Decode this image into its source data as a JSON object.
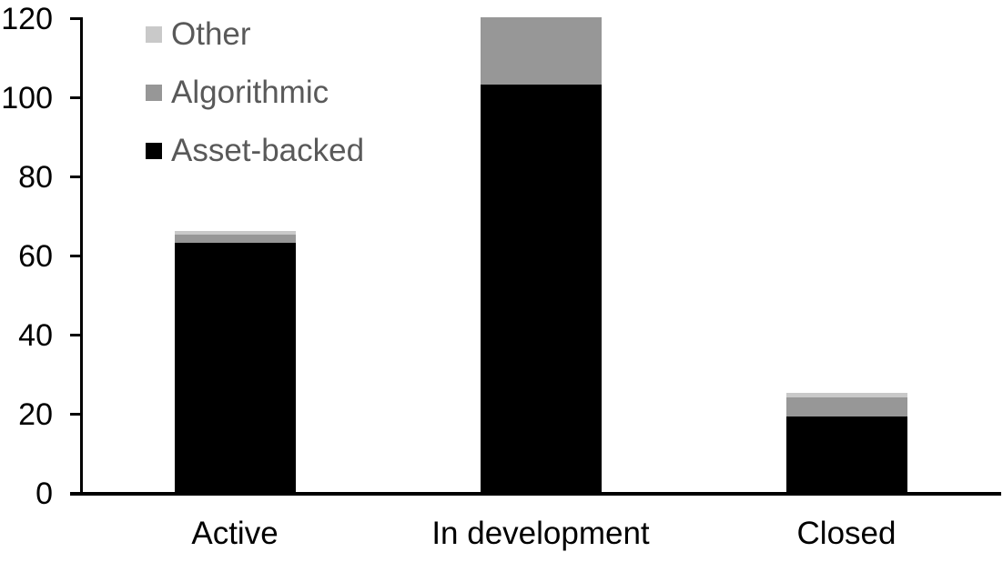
{
  "chart_data": {
    "type": "bar",
    "stacked": true,
    "title": "",
    "categories": [
      "Active",
      "In development",
      "Closed"
    ],
    "series": [
      {
        "name": "Asset-backed",
        "color": "#000000",
        "values": [
          63,
          103,
          19
        ]
      },
      {
        "name": "Algorithmic",
        "color": "#979797",
        "values": [
          2,
          17,
          5
        ]
      },
      {
        "name": "Other",
        "color": "#C9C9C9",
        "values": [
          1,
          0,
          1
        ]
      }
    ],
    "totals": [
      66,
      120,
      25
    ],
    "ylim": [
      0,
      120
    ],
    "yticks": [
      0,
      20,
      40,
      60,
      80,
      100,
      120
    ],
    "xlabel": "",
    "ylabel": "",
    "grid": false,
    "legend": {
      "position": "top-left",
      "order_top_to_bottom": [
        "Other",
        "Algorithmic",
        "Asset-backed"
      ]
    },
    "colors": {
      "axis": "#000000",
      "tick_label_text": "#000000",
      "category_label_text": "#000000",
      "legend_text": "#595959",
      "background": "#FFFFFF"
    }
  }
}
